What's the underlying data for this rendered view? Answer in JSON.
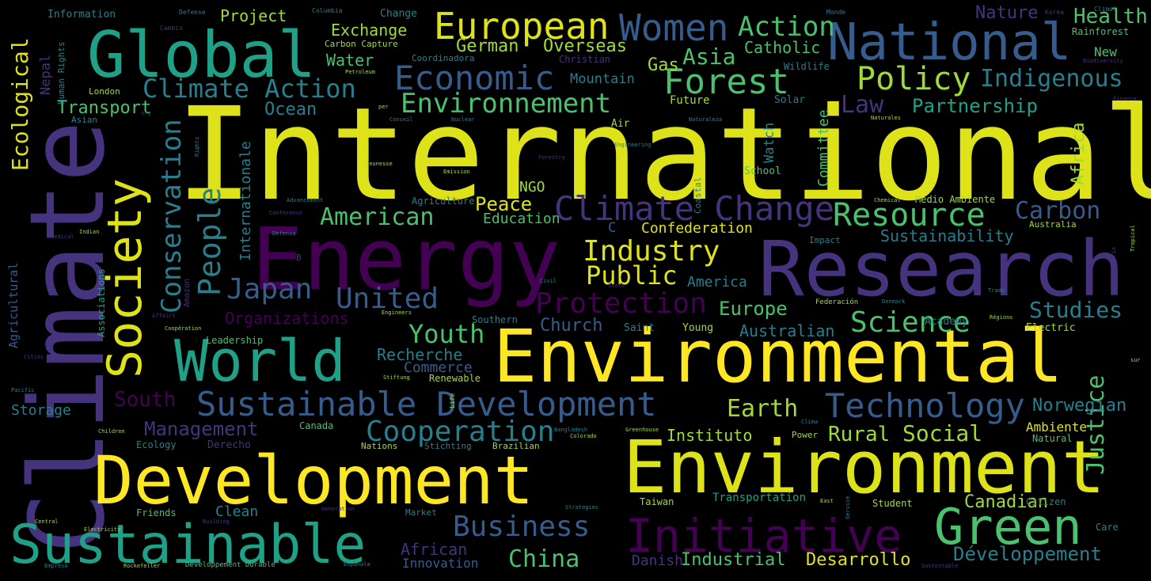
{
  "palette": {
    "yellow": "#dde318",
    "brightyellow": "#fde725",
    "lime": "#a0da39",
    "green": "#4ac16d",
    "teal": "#1fa187",
    "cyan": "#277f8e",
    "blue": "#365c8d",
    "indigo": "#46337e",
    "purple": "#440154"
  },
  "words": [
    {
      "text": "International"
    },
    {
      "text": "Climate"
    },
    {
      "text": "Energy"
    },
    {
      "text": "Research"
    },
    {
      "text": "Environmental"
    },
    {
      "text": "Environment"
    },
    {
      "text": "Development"
    },
    {
      "text": "Global"
    },
    {
      "text": "National"
    },
    {
      "text": "Sustainable"
    },
    {
      "text": "Green"
    },
    {
      "text": "Initiative"
    },
    {
      "text": "World"
    },
    {
      "text": "Society"
    },
    {
      "text": "European"
    },
    {
      "text": "Women"
    },
    {
      "text": "Forest"
    },
    {
      "text": "Economic"
    },
    {
      "text": "Policy"
    },
    {
      "text": "Climate Change"
    },
    {
      "text": "Sustainable Development"
    },
    {
      "text": "Technology"
    },
    {
      "text": "Resource"
    },
    {
      "text": "Environnement"
    },
    {
      "text": "Climate Action"
    },
    {
      "text": "Indigenous"
    },
    {
      "text": "Action"
    },
    {
      "text": "Health"
    },
    {
      "text": "Business"
    },
    {
      "text": "Protection"
    },
    {
      "text": "Conservation"
    },
    {
      "text": "People"
    },
    {
      "text": "Industry"
    },
    {
      "text": "Public"
    },
    {
      "text": "United"
    },
    {
      "text": "Japan"
    },
    {
      "text": "American"
    },
    {
      "text": "Science"
    },
    {
      "text": "Youth"
    },
    {
      "text": "Cooperation"
    },
    {
      "text": "Développement"
    },
    {
      "text": "Carbon"
    },
    {
      "text": "Studies"
    },
    {
      "text": "Ecological"
    },
    {
      "text": "Asia"
    },
    {
      "text": "Law"
    },
    {
      "text": "Partnership"
    },
    {
      "text": "Justice"
    },
    {
      "text": "Earth"
    },
    {
      "text": "Africa"
    },
    {
      "text": "Management"
    },
    {
      "text": "Social"
    },
    {
      "text": "Rural"
    },
    {
      "text": "Sustainability"
    },
    {
      "text": "Europe"
    },
    {
      "text": "Church"
    },
    {
      "text": "Norwegian"
    },
    {
      "text": "Canadian"
    },
    {
      "text": "China"
    },
    {
      "text": "Industrial"
    },
    {
      "text": "Desarrollo"
    },
    {
      "text": "Nature"
    },
    {
      "text": "Catholic"
    },
    {
      "text": "Exchange"
    },
    {
      "text": "Project"
    },
    {
      "text": "German"
    },
    {
      "text": "Overseas"
    },
    {
      "text": "Gas"
    },
    {
      "text": "Water"
    },
    {
      "text": "Transport"
    },
    {
      "text": "Ocean"
    },
    {
      "text": "Peace"
    },
    {
      "text": "NGO"
    },
    {
      "text": "Education"
    },
    {
      "text": "Confederation"
    },
    {
      "text": "Instituto"
    },
    {
      "text": "Australian"
    },
    {
      "text": "Organizations"
    },
    {
      "text": "South"
    },
    {
      "text": "Recherche"
    },
    {
      "text": "Commerce"
    },
    {
      "text": "Storage"
    },
    {
      "text": "African"
    },
    {
      "text": "Clean"
    },
    {
      "text": "Innovation"
    },
    {
      "text": "Danish"
    },
    {
      "text": "Ambiente"
    },
    {
      "text": "America"
    },
    {
      "text": "Mountain"
    },
    {
      "text": "Future"
    },
    {
      "text": "Transportation"
    },
    {
      "text": "Rainforest"
    },
    {
      "text": "New"
    },
    {
      "text": "Committee"
    },
    {
      "text": "Watch"
    },
    {
      "text": "Internationale"
    },
    {
      "text": "Agricultural"
    },
    {
      "text": "Nepal"
    },
    {
      "text": "Human Rights"
    },
    {
      "text": "Associations"
    },
    {
      "text": "Information"
    },
    {
      "text": "Carbon Capture"
    },
    {
      "text": "Coordinadora"
    },
    {
      "text": "Change"
    },
    {
      "text": "Christian"
    },
    {
      "text": "Wildlife"
    },
    {
      "text": "London"
    },
    {
      "text": "Asian"
    },
    {
      "text": "Air"
    },
    {
      "text": "Solar"
    },
    {
      "text": "School"
    },
    {
      "text": "Coastal"
    },
    {
      "text": "Agriculture"
    },
    {
      "text": "Medio Ambiente"
    },
    {
      "text": "Australia"
    },
    {
      "text": "Academy"
    },
    {
      "text": "Electric"
    },
    {
      "text": "Southern"
    },
    {
      "text": "Saint"
    },
    {
      "text": "Young"
    },
    {
      "text": "Leadership"
    },
    {
      "text": "Renewable"
    },
    {
      "text": "Canada"
    },
    {
      "text": "Nations"
    },
    {
      "text": "Stichting"
    },
    {
      "text": "Brazilian"
    },
    {
      "text": "Ecology"
    },
    {
      "text": "Derecho"
    },
    {
      "text": "Power"
    },
    {
      "text": "Student"
    },
    {
      "text": "Citizen"
    },
    {
      "text": "Taiwan"
    },
    {
      "text": "Friends"
    },
    {
      "text": "Market"
    },
    {
      "text": "Natural"
    },
    {
      "text": "Impact"
    },
    {
      "text": "Amazon"
    },
    {
      "text": "Defense"
    },
    {
      "text": "Columbia"
    },
    {
      "text": "Monde"
    },
    {
      "text": "Korea"
    },
    {
      "text": "Climat"
    },
    {
      "text": "Cambio"
    },
    {
      "text": "Petroleum"
    },
    {
      "text": "Biodiversity"
    },
    {
      "text": "Finance"
    },
    {
      "text": "Conseil"
    },
    {
      "text": "Nuclear"
    },
    {
      "text": "Naturaleza"
    },
    {
      "text": "Naturales"
    },
    {
      "text": "Engineering"
    },
    {
      "text": "Forestry"
    },
    {
      "text": "Jeunesse"
    },
    {
      "text": "Emission"
    },
    {
      "text": "Chemical"
    },
    {
      "text": "Tropical"
    },
    {
      "text": "Industria"
    },
    {
      "text": "Advancement"
    },
    {
      "text": "Conference"
    },
    {
      "text": "Indian"
    },
    {
      "text": "Medical"
    },
    {
      "text": "Defensa"
    },
    {
      "text": "Civil"
    },
    {
      "text": "State"
    },
    {
      "text": "Trade"
    },
    {
      "text": "Federación"
    },
    {
      "text": "Denmark"
    },
    {
      "text": "Régions"
    },
    {
      "text": "Affairs"
    },
    {
      "text": "Engineers"
    },
    {
      "text": "Coopération"
    },
    {
      "text": "Cities"
    },
    {
      "text": "Pacific"
    },
    {
      "text": "Stiftung"
    },
    {
      "text": "Life"
    },
    {
      "text": "Bangladesh"
    },
    {
      "text": "Greenhouse"
    },
    {
      "text": "Colorado"
    },
    {
      "text": "Clima"
    },
    {
      "text": "Children"
    },
    {
      "text": "Generation"
    },
    {
      "text": "Strategies"
    },
    {
      "text": "East"
    },
    {
      "text": "Service"
    },
    {
      "text": "Care"
    },
    {
      "text": "Electricity"
    },
    {
      "text": "Central"
    },
    {
      "text": "Building"
    },
    {
      "text": "Empresa"
    },
    {
      "text": "Rockefeller"
    },
    {
      "text": "Developpement Durable"
    },
    {
      "text": "Española"
    },
    {
      "text": "Sustentable"
    },
    {
      "text": "Rights"
    },
    {
      "text": "org"
    },
    {
      "text": "per"
    },
    {
      "text": "sur"
    },
    {
      "text": "B"
    },
    {
      "text": "C"
    }
  ]
}
